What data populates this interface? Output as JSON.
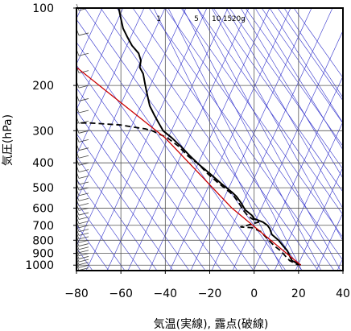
{
  "chart_data": {
    "type": "line",
    "xlabel": "気温(実線), 露点(破線)",
    "ylabel": "気圧(hPa)",
    "xlim": [
      -80,
      40
    ],
    "ylim": [
      1050,
      100
    ],
    "y_scale": "log",
    "grid": true,
    "x_ticks": [
      "−80",
      "−60",
      "−40",
      "−20",
      "0",
      "20",
      "40"
    ],
    "x_tick_values": [
      -80,
      -60,
      -40,
      -20,
      0,
      20,
      40
    ],
    "y_ticks": [
      "100",
      "200",
      "300",
      "400",
      "500",
      "600",
      "700",
      "800",
      "900",
      "1000"
    ],
    "y_tick_values": [
      100,
      200,
      300,
      400,
      500,
      600,
      700,
      800,
      900,
      1000
    ],
    "mixing_ratio_labels": [
      "1",
      "5",
      "10",
      "15",
      "20g"
    ],
    "colors": {
      "temperature": "#000000",
      "dewpoint": "#000000",
      "parcel_path": "#cc0000",
      "background_lines": "#3333cc",
      "grid": "#555555",
      "wind_barbs": "#444444"
    },
    "series": [
      {
        "name": "気温",
        "style": "solid",
        "points": [
          [
            -61,
            100
          ],
          [
            -60,
            110
          ],
          [
            -59,
            120
          ],
          [
            -58,
            125
          ],
          [
            -57,
            130
          ],
          [
            -55,
            140
          ],
          [
            -52,
            150
          ],
          [
            -51,
            160
          ],
          [
            -51.5,
            170
          ],
          [
            -50,
            180
          ],
          [
            -49,
            200
          ],
          [
            -48,
            220
          ],
          [
            -47,
            240
          ],
          [
            -45,
            260
          ],
          [
            -43,
            280
          ],
          [
            -41,
            300
          ],
          [
            -37,
            320
          ],
          [
            -33,
            345
          ],
          [
            -29,
            375
          ],
          [
            -25,
            405
          ],
          [
            -20,
            440
          ],
          [
            -15,
            480
          ],
          [
            -10,
            520
          ],
          [
            -8,
            540
          ],
          [
            -6,
            570
          ],
          [
            -4,
            610
          ],
          [
            -1,
            640
          ],
          [
            0,
            660
          ],
          [
            4,
            680
          ],
          [
            6,
            700
          ],
          [
            7,
            720
          ],
          [
            8,
            760
          ],
          [
            11,
            800
          ],
          [
            13,
            840
          ],
          [
            15,
            880
          ],
          [
            16,
            920
          ],
          [
            17,
            960
          ],
          [
            21,
            1000
          ]
        ]
      },
      {
        "name": "露点",
        "style": "dashed",
        "points": [
          [
            -82,
            280
          ],
          [
            -74,
            280
          ],
          [
            -60,
            285
          ],
          [
            -55,
            290
          ],
          [
            -49,
            295
          ],
          [
            -46,
            300
          ],
          [
            -39,
            320
          ],
          [
            -34,
            345
          ],
          [
            -30,
            375
          ],
          [
            -25,
            405
          ],
          [
            -21,
            440
          ],
          [
            -16,
            480
          ],
          [
            -11,
            520
          ],
          [
            -9,
            540
          ],
          [
            -7,
            570
          ],
          [
            -5,
            610
          ],
          [
            -3,
            640
          ],
          [
            -1,
            660
          ],
          [
            2,
            680
          ],
          [
            -3,
            700
          ],
          [
            -6,
            710
          ],
          [
            -1,
            715
          ],
          [
            3,
            740
          ],
          [
            6,
            790
          ],
          [
            9,
            840
          ],
          [
            12,
            880
          ],
          [
            14,
            920
          ],
          [
            16,
            960
          ],
          [
            20,
            1000
          ]
        ]
      },
      {
        "name": "",
        "style": "red",
        "points": [
          [
            21,
            1000
          ],
          [
            -10,
            600
          ],
          [
            -40,
            320
          ],
          [
            -80,
            170
          ]
        ]
      }
    ]
  }
}
